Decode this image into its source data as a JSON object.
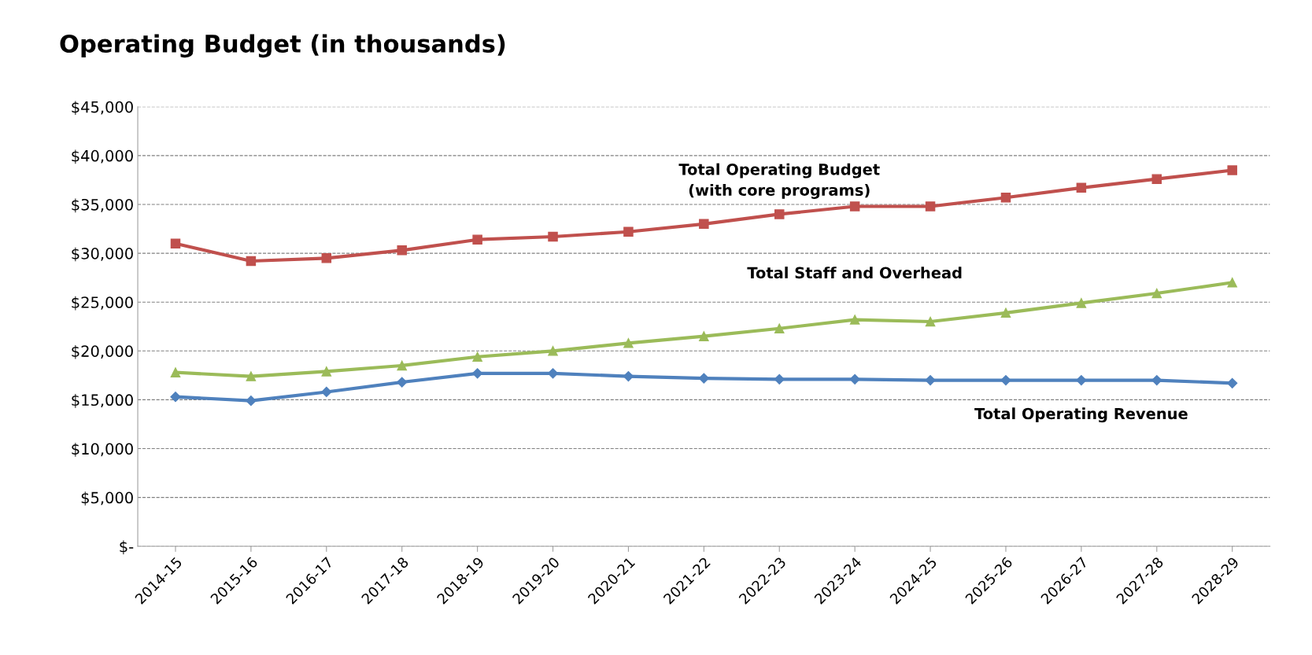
{
  "chart_data": {
    "type": "line",
    "title": "Operating Budget (in thousands)",
    "categories": [
      "2014-15",
      "2015-16",
      "2016-17",
      "2017-18",
      "2018-19",
      "2019-20",
      "2020-21",
      "2021-22",
      "2022-23",
      "2023-24",
      "2024-25",
      "2025-26",
      "2026-27",
      "2027-28",
      "2028-29"
    ],
    "series": [
      {
        "name": "Total Operating Budget\n(with core programs)",
        "color": "#c0504d",
        "marker": "square",
        "values": [
          31000,
          29200,
          29500,
          30300,
          31400,
          31700,
          32200,
          33000,
          34000,
          34800,
          34800,
          35700,
          36700,
          37600,
          38500
        ]
      },
      {
        "name": "Total Staff and Overhead",
        "color": "#9bbb59",
        "marker": "triangle",
        "values": [
          17800,
          17400,
          17900,
          18500,
          19400,
          20000,
          20800,
          21500,
          22300,
          23200,
          23000,
          23900,
          24900,
          25900,
          27000
        ]
      },
      {
        "name": "Total Operating Revenue",
        "color": "#4f81bd",
        "marker": "diamond",
        "values": [
          15300,
          14900,
          15800,
          16800,
          17700,
          17700,
          17400,
          17200,
          17100,
          17100,
          17000,
          17000,
          17000,
          17000,
          16700
        ]
      }
    ],
    "ylim": [
      0,
      45000
    ],
    "yticks": [
      {
        "value": 0,
        "label": "$-"
      },
      {
        "value": 5000,
        "label": "$5,000"
      },
      {
        "value": 10000,
        "label": "$10,000"
      },
      {
        "value": 15000,
        "label": "$15,000"
      },
      {
        "value": 20000,
        "label": "$20,000"
      },
      {
        "value": 25000,
        "label": "$25,000"
      },
      {
        "value": 30000,
        "label": "$30,000"
      },
      {
        "value": 35000,
        "label": "$35,000"
      },
      {
        "value": 40000,
        "label": "$40,000"
      },
      {
        "value": 45000,
        "label": "$45,000"
      }
    ],
    "grid": "y",
    "line_style": "solid",
    "legend": false
  }
}
